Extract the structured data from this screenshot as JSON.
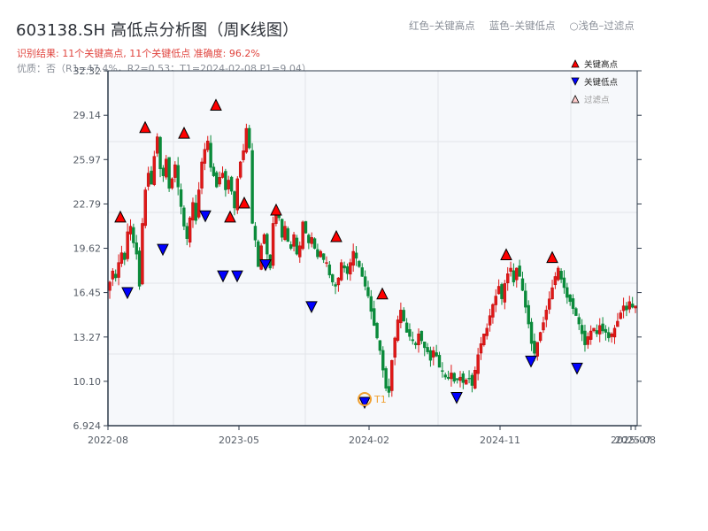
{
  "header": {
    "title": "603138.SH 高低点分析图（周K线图）",
    "result_text": "识别结果: 11个关键高点, 11个关键低点  准确度: 96.2%",
    "quality_text": "优质：否（R1=47.4%，R2=0.53；T1=2024-02-08 P1=9.04）"
  },
  "top_legend": {
    "red": "红色–关键高点",
    "blue": "蓝色–关键低点",
    "light": "○浅色–过滤点"
  },
  "legend": {
    "items": [
      {
        "label": "关键高点",
        "marker": "triangle-up",
        "color": "#ff0000"
      },
      {
        "label": "关键低点",
        "marker": "triangle-down",
        "color": "#0000ff"
      },
      {
        "label": "过滤点",
        "marker": "triangle-up-light",
        "color": "#ffcccc"
      }
    ]
  },
  "colors": {
    "up": "#e01818",
    "down": "#0a8a3a",
    "high_marker": "#ff0000",
    "low_marker": "#0000ff",
    "t1_ring": "#f0a030",
    "axis": "#2d3a4a",
    "grid": "#e2e5ea",
    "plot_bg": "#f6f8fb"
  },
  "annotation": {
    "label": "T1",
    "date": "2024-02-08",
    "price": 9.04
  },
  "chart_data": {
    "type": "candlestick",
    "title": "603138.SH 高低点分析图（周K线图）",
    "xlabel": "",
    "ylabel": "",
    "ylim": [
      6.924,
      32.32
    ],
    "yticks": [
      6.924,
      10.1,
      13.27,
      16.45,
      19.62,
      22.79,
      25.97,
      29.14,
      32.32
    ],
    "ytick_labels": [
      "6.924",
      "10.10",
      "13.27",
      "16.45",
      "19.62",
      "22.79",
      "25.97",
      "29.14",
      "32.32"
    ],
    "xticks": [
      "2022-08",
      "2023-05",
      "2024-02",
      "2024-11",
      "2025-07",
      "2025-08"
    ],
    "grid": true,
    "legend_position": "upper right",
    "closes": [
      17.2,
      18.0,
      17.5,
      18.6,
      19.3,
      18.8,
      20.8,
      21.2,
      20.0,
      19.2,
      16.9,
      21.4,
      23.8,
      25.0,
      24.2,
      26.2,
      27.6,
      25.3,
      24.8,
      26.0,
      23.9,
      24.6,
      25.6,
      24.0,
      22.6,
      21.2,
      20.3,
      21.8,
      22.9,
      21.6,
      23.8,
      25.8,
      26.7,
      27.3,
      25.4,
      24.8,
      24.0,
      24.7,
      25.0,
      23.8,
      24.5,
      23.7,
      22.5,
      24.6,
      25.8,
      26.6,
      28.2,
      26.8,
      21.4,
      20.2,
      18.3,
      19.8,
      20.6,
      19.2,
      18.2,
      21.4,
      22.3,
      21.8,
      20.4,
      21.2,
      20.1,
      19.6,
      20.6,
      19.2,
      19.8,
      21.5,
      20.7,
      20.0,
      20.4,
      19.6,
      19.0,
      19.4,
      18.8,
      18.6,
      17.7,
      17.2,
      16.9,
      17.5,
      18.6,
      18.2,
      17.8,
      18.6,
      19.4,
      18.9,
      18.3,
      17.6,
      16.9,
      16.2,
      15.1,
      14.1,
      13.2,
      12.3,
      10.9,
      9.6,
      9.3,
      11.6,
      13.2,
      14.5,
      15.2,
      14.4,
      13.6,
      13.3,
      13.0,
      12.7,
      13.5,
      13.0,
      12.5,
      12.2,
      11.6,
      12.3,
      11.9,
      11.1,
      10.8,
      10.4,
      10.3,
      10.7,
      10.1,
      10.2,
      10.4,
      10.0,
      10.2,
      10.3,
      9.8,
      10.9,
      12.0,
      12.8,
      13.5,
      13.9,
      14.8,
      15.6,
      16.2,
      16.9,
      16.0,
      17.1,
      17.8,
      18.2,
      17.2,
      18.2,
      17.6,
      16.6,
      15.4,
      14.2,
      12.8,
      12.1,
      12.9,
      13.6,
      14.3,
      15.2,
      16.0,
      16.8,
      17.6,
      18.2,
      17.4,
      16.8,
      16.1,
      15.8,
      15.3,
      14.8,
      14.2,
      13.5,
      12.7,
      13.3,
      13.7,
      13.9,
      13.5,
      14.1,
      13.7,
      13.6,
      13.2,
      13.5,
      13.9,
      14.4,
      15.0,
      15.5,
      15.2,
      15.8,
      15.4,
      15.5
    ],
    "key_highs": [
      {
        "x": 136,
        "price": 21.5
      },
      {
        "x": 164,
        "price": 27.9
      },
      {
        "x": 208,
        "price": 27.5
      },
      {
        "x": 244,
        "price": 29.5
      },
      {
        "x": 260,
        "price": 21.5
      },
      {
        "x": 276,
        "price": 22.5
      },
      {
        "x": 312,
        "price": 22.0
      },
      {
        "x": 380,
        "price": 20.1
      },
      {
        "x": 432,
        "price": 16.0
      },
      {
        "x": 572,
        "price": 18.8
      },
      {
        "x": 624,
        "price": 18.6
      }
    ],
    "key_lows": [
      {
        "x": 144,
        "price": 16.8
      },
      {
        "x": 184,
        "price": 19.9
      },
      {
        "x": 232,
        "price": 22.3
      },
      {
        "x": 252,
        "price": 18.0
      },
      {
        "x": 268,
        "price": 18.0
      },
      {
        "x": 300,
        "price": 18.8
      },
      {
        "x": 352,
        "price": 15.8
      },
      {
        "x": 412,
        "price": 8.95
      },
      {
        "x": 516,
        "price": 9.3
      },
      {
        "x": 600,
        "price": 11.9
      },
      {
        "x": 652,
        "price": 11.4
      }
    ],
    "summary": {
      "key_high_count": 11,
      "key_low_count": 11,
      "accuracy": "96.2%",
      "R1": "47.4%",
      "R2": 0.53,
      "T1": "2024-02-08",
      "P1": 9.04
    }
  }
}
